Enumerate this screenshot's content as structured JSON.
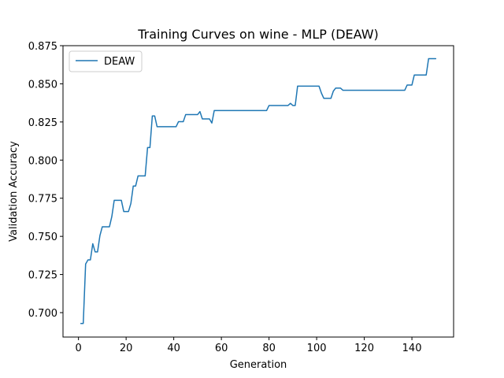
{
  "chart_data": {
    "type": "line",
    "title": "Training Curves on wine - MLP (DEAW)",
    "xlabel": "Generation",
    "ylabel": "Validation Accuracy",
    "xlim": [
      -6.5,
      157.5
    ],
    "ylim": [
      0.684,
      0.875
    ],
    "xticks": [
      0,
      20,
      40,
      60,
      80,
      100,
      120,
      140
    ],
    "yticks": [
      0.7,
      0.725,
      0.75,
      0.775,
      0.8,
      0.825,
      0.85,
      0.875
    ],
    "ytick_labels": [
      "0.700",
      "0.725",
      "0.750",
      "0.775",
      "0.800",
      "0.825",
      "0.850",
      "0.875"
    ],
    "grid": false,
    "legend_position": "top-left",
    "line_color": "#1f77b4",
    "series": [
      {
        "name": "DEAW",
        "x": [
          1,
          2,
          3,
          4,
          5,
          6,
          7,
          8,
          9,
          10,
          11,
          12,
          13,
          14,
          15,
          16,
          17,
          18,
          19,
          20,
          21,
          22,
          23,
          24,
          25,
          26,
          27,
          28,
          29,
          30,
          31,
          32,
          33,
          34,
          35,
          36,
          37,
          38,
          39,
          40,
          41,
          42,
          43,
          44,
          45,
          46,
          47,
          48,
          49,
          50,
          51,
          52,
          53,
          54,
          55,
          56,
          57,
          58,
          59,
          60,
          61,
          62,
          63,
          64,
          65,
          66,
          67,
          68,
          69,
          70,
          71,
          72,
          73,
          74,
          75,
          76,
          77,
          78,
          79,
          80,
          81,
          82,
          83,
          84,
          85,
          86,
          87,
          88,
          89,
          90,
          91,
          92,
          93,
          94,
          95,
          96,
          97,
          98,
          99,
          100,
          101,
          102,
          103,
          104,
          105,
          106,
          107,
          108,
          109,
          110,
          111,
          112,
          113,
          114,
          115,
          116,
          117,
          118,
          119,
          120,
          121,
          122,
          123,
          124,
          125,
          126,
          127,
          128,
          129,
          130,
          131,
          132,
          133,
          134,
          135,
          136,
          137,
          138,
          139,
          140,
          141,
          142,
          143,
          144,
          145,
          146,
          147,
          148,
          149,
          150
        ],
        "values": [
          0.6929,
          0.6929,
          0.7319,
          0.7346,
          0.7346,
          0.7452,
          0.7398,
          0.7398,
          0.7505,
          0.7563,
          0.7563,
          0.7563,
          0.7563,
          0.763,
          0.7736,
          0.7736,
          0.7736,
          0.7736,
          0.7663,
          0.7663,
          0.7663,
          0.7716,
          0.783,
          0.783,
          0.7896,
          0.7896,
          0.7896,
          0.7896,
          0.8082,
          0.8082,
          0.8289,
          0.8289,
          0.8219,
          0.8219,
          0.8219,
          0.8219,
          0.8219,
          0.8219,
          0.8219,
          0.8219,
          0.8219,
          0.8252,
          0.8252,
          0.8252,
          0.8298,
          0.8298,
          0.8298,
          0.8298,
          0.8298,
          0.8298,
          0.8318,
          0.827,
          0.827,
          0.827,
          0.827,
          0.8243,
          0.8325,
          0.8325,
          0.8325,
          0.8325,
          0.8325,
          0.8325,
          0.8325,
          0.8325,
          0.8325,
          0.8325,
          0.8325,
          0.8325,
          0.8325,
          0.8325,
          0.8325,
          0.8325,
          0.8325,
          0.8325,
          0.8325,
          0.8325,
          0.8325,
          0.8325,
          0.8325,
          0.8358,
          0.8358,
          0.8358,
          0.8358,
          0.8358,
          0.8358,
          0.8358,
          0.8358,
          0.8358,
          0.8372,
          0.8358,
          0.8358,
          0.8485,
          0.8485,
          0.8485,
          0.8485,
          0.8485,
          0.8485,
          0.8485,
          0.8485,
          0.8485,
          0.8485,
          0.8439,
          0.8405,
          0.8405,
          0.8405,
          0.8405,
          0.8452,
          0.8472,
          0.8472,
          0.8472,
          0.8458,
          0.8458,
          0.8458,
          0.8458,
          0.8458,
          0.8458,
          0.8458,
          0.8458,
          0.8458,
          0.8458,
          0.8458,
          0.8458,
          0.8458,
          0.8458,
          0.8458,
          0.8458,
          0.8458,
          0.8458,
          0.8458,
          0.8458,
          0.8458,
          0.8458,
          0.8458,
          0.8458,
          0.8458,
          0.8458,
          0.8458,
          0.8492,
          0.8492,
          0.8492,
          0.8558,
          0.8558,
          0.8558,
          0.8558,
          0.8558,
          0.8558,
          0.8665,
          0.8665,
          0.8665,
          0.8665
        ]
      }
    ]
  }
}
